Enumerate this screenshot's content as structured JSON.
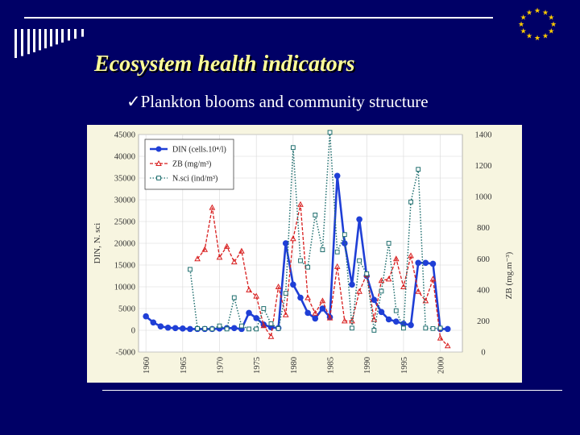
{
  "slide": {
    "title": "Ecosystem health indicators",
    "bullet_mark": "ü",
    "bullet_text": "Plankton blooms and community structure",
    "logo": "eu-flag"
  },
  "colors": {
    "background": "#000066",
    "title": "#ffff99",
    "din": "#1f3fd6",
    "zb": "#d81e1e",
    "nsci": "#1f6e6e",
    "plot_bg": "#ffffff",
    "frame_bg": "#f7f5e0"
  },
  "chart_data": {
    "type": "line",
    "x_ticks": [
      "1960",
      "1965",
      "1970",
      "1975",
      "1980",
      "1985",
      "1990",
      "1995",
      "2000"
    ],
    "xlim": [
      1959,
      2003
    ],
    "ylabel": "DIN, N. sci",
    "y2label": "ZB   (mg.m⁻³)",
    "ylim": [
      -5000,
      45000
    ],
    "y2lim": [
      0,
      1400
    ],
    "y_ticks": [
      "45000",
      "40000",
      "35000",
      "30000",
      "25000",
      "20000",
      "15000",
      "10000",
      "5000",
      "0",
      "-5000"
    ],
    "y2_ticks": [
      "1400",
      "1200",
      "1000",
      "800",
      "600",
      "400",
      "200",
      "0"
    ],
    "grid": true,
    "legend_position": "top-left",
    "series": [
      {
        "name": "DIN (cells.10⁴/l)",
        "axis": "left",
        "style": "solid-circle",
        "color": "#1f3fd6",
        "x": [
          1960,
          1961,
          1962,
          1963,
          1964,
          1965,
          1966,
          1967,
          1968,
          1969,
          1970,
          1971,
          1972,
          1973,
          1974,
          1975,
          1976,
          1977,
          1978,
          1979,
          1980,
          1981,
          1982,
          1983,
          1984,
          1985,
          1986,
          1987,
          1988,
          1989,
          1990,
          1991,
          1992,
          1993,
          1994,
          1995,
          1996,
          1997,
          1998,
          1999,
          2000,
          2001
        ],
        "y": [
          3200,
          1800,
          900,
          600,
          500,
          400,
          300,
          300,
          300,
          300,
          400,
          500,
          500,
          300,
          4000,
          2800,
          1300,
          700,
          500,
          20000,
          10500,
          7500,
          4000,
          2700,
          5000,
          3000,
          35500,
          20000,
          10500,
          25500,
          12500,
          7000,
          4200,
          2500,
          2000,
          1500,
          1200,
          15500,
          15500,
          15300,
          300,
          300
        ]
      },
      {
        "name": "ZB (mg/m³)",
        "axis": "right",
        "style": "dashed-triangle",
        "color": "#d81e1e",
        "x": [
          1967,
          1968,
          1969,
          1970,
          1971,
          1972,
          1973,
          1974,
          1975,
          1976,
          1977,
          1978,
          1979,
          1980,
          1981,
          1982,
          1983,
          1984,
          1985,
          1986,
          1987,
          1988,
          1989,
          1990,
          1991,
          1992,
          1993,
          1994,
          1995,
          1996,
          1997,
          1998,
          1999,
          2000,
          2001
        ],
        "y": [
          600,
          660,
          930,
          610,
          680,
          580,
          650,
          400,
          360,
          170,
          100,
          420,
          240,
          730,
          950,
          350,
          250,
          330,
          220,
          550,
          200,
          200,
          390,
          500,
          210,
          460,
          470,
          600,
          420,
          620,
          390,
          330,
          470,
          90,
          40
        ]
      },
      {
        "name": "N.sci (ind/m³)",
        "axis": "left",
        "style": "dotted-square",
        "color": "#1f6e6e",
        "x": [
          1966,
          1967,
          1968,
          1969,
          1970,
          1971,
          1972,
          1973,
          1974,
          1975,
          1976,
          1977,
          1978,
          1979,
          1980,
          1981,
          1982,
          1983,
          1984,
          1985,
          1986,
          1987,
          1988,
          1989,
          1990,
          1991,
          1992,
          1993,
          1994,
          1995,
          1996,
          1997,
          1998,
          1999,
          2000
        ],
        "y": [
          14000,
          400,
          400,
          300,
          1000,
          300,
          7500,
          1000,
          300,
          300,
          5000,
          1500,
          400,
          8500,
          42000,
          16000,
          14500,
          26500,
          18500,
          45500,
          18000,
          22000,
          500,
          16000,
          13000,
          0,
          9000,
          20000,
          4500,
          500,
          29500,
          37000,
          500,
          400,
          500
        ]
      }
    ]
  }
}
